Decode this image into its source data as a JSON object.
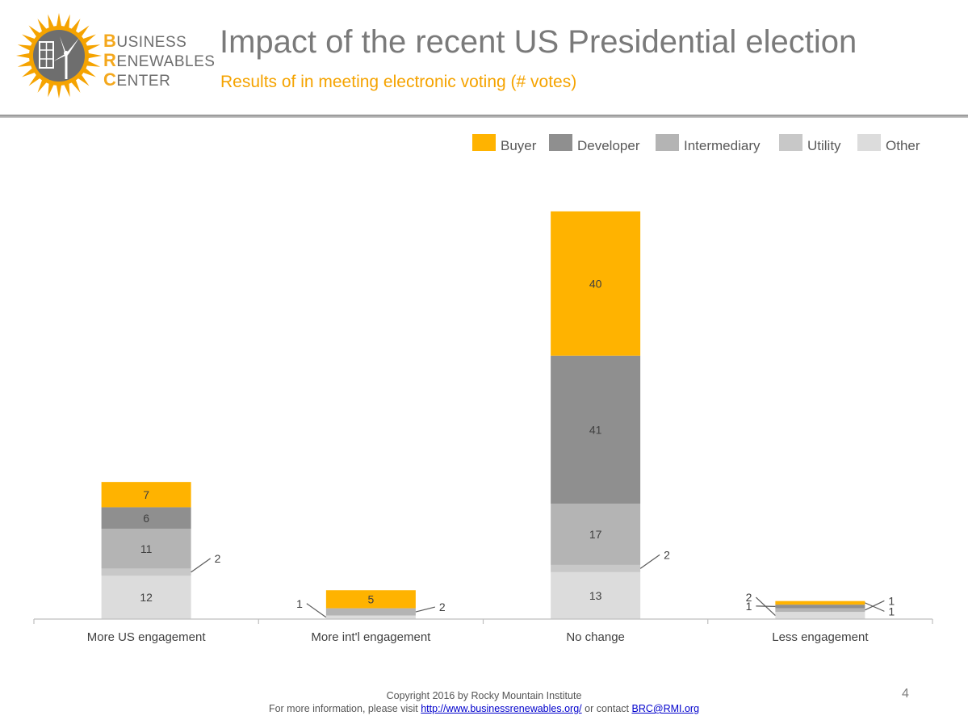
{
  "header": {
    "title": "Impact of the recent US Presidential election",
    "subtitle": "Results of in meeting electronic voting (# votes)",
    "logo": {
      "lines": [
        {
          "first": "B",
          "rest": "USINESS"
        },
        {
          "first": "R",
          "rest": "ENEWABLES"
        },
        {
          "first": "C",
          "rest": "ENTER"
        }
      ],
      "icon": "sun-wind-solar-logo-icon"
    }
  },
  "chart_data": {
    "type": "bar",
    "stacked": true,
    "categories": [
      "More US engagement",
      "More int'l engagement",
      "No change",
      "Less engagement"
    ],
    "series": [
      {
        "name": "Other",
        "color": "#dcdcdc",
        "values": [
          12,
          1,
          13,
          2
        ]
      },
      {
        "name": "Utility",
        "color": "#c8c8c8",
        "values": [
          2,
          0,
          2,
          0
        ]
      },
      {
        "name": "Intermediary",
        "color": "#b4b4b4",
        "values": [
          11,
          2,
          17,
          1
        ]
      },
      {
        "name": "Developer",
        "color": "#8f8f8f",
        "values": [
          6,
          0,
          41,
          1
        ]
      },
      {
        "name": "Buyer",
        "color": "#ffb300",
        "values": [
          7,
          5,
          40,
          1
        ]
      }
    ],
    "legend_order": [
      "Buyer",
      "Developer",
      "Intermediary",
      "Utility",
      "Other"
    ],
    "legend_position": "top-right",
    "ylim": [
      0,
      113
    ],
    "grid": false
  },
  "footer": {
    "copyright": "Copyright 2016 by Rocky Mountain Institute",
    "info_prefix": "For more information, please visit ",
    "link_url": "http://www.businessrenewables.org/",
    "info_mid": " or contact ",
    "email": "BRC@RMI.org"
  },
  "page_number": "4"
}
